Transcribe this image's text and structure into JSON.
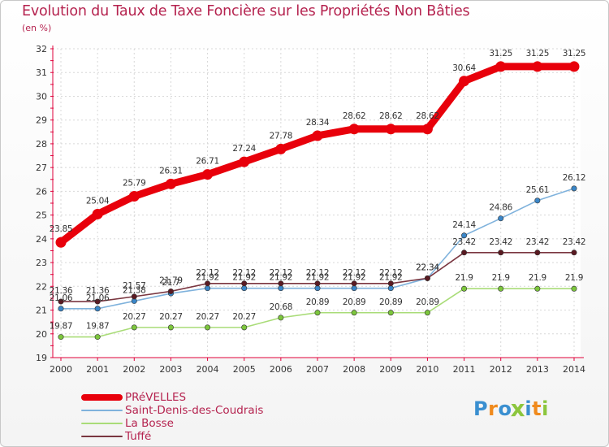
{
  "header": {
    "title": "Evolution du Taux de Taxe Foncière sur les Propriétés Non Bâties",
    "unit": "(en %)"
  },
  "logo": {
    "letters": [
      "P",
      "r",
      "o",
      "x",
      "i",
      "t",
      "i"
    ],
    "colors": [
      "#3a8fd0",
      "#f08a1c",
      "#3a8fd0",
      "#8cc63e",
      "#3a8fd0",
      "#f08a1c",
      "#8cc63e"
    ]
  },
  "chart_data": {
    "type": "line",
    "title": "Evolution du Taux de Taxe Foncière sur les Propriétés Non Bâties",
    "ylabel": "(en %)",
    "xlabel": "",
    "ylim": [
      19,
      32
    ],
    "yticks": [
      19,
      20,
      21,
      22,
      23,
      24,
      25,
      26,
      27,
      28,
      29,
      30,
      31,
      32
    ],
    "x": [
      "2000",
      "2001",
      "2002",
      "2003",
      "2004",
      "2005",
      "2006",
      "2007",
      "2008",
      "2009",
      "2010",
      "2011",
      "2012",
      "2013",
      "2014"
    ],
    "grid": true,
    "legend_position": "bottom-left",
    "series": [
      {
        "name": "PRéVELLES",
        "color": "#e8000b",
        "marker": "#e8000b",
        "values": [
          23.85,
          25.04,
          25.79,
          26.31,
          26.71,
          27.24,
          27.78,
          28.34,
          28.62,
          28.62,
          28.62,
          30.64,
          31.25,
          31.25,
          31.25
        ],
        "labels": [
          "23.85",
          "25.04",
          "25.79",
          "26.31",
          "26.71",
          "27.24",
          "27.78",
          "28.34",
          "28.62",
          "28.62",
          "28.62",
          "30.64",
          "31.25",
          "31.25",
          "31.25"
        ]
      },
      {
        "name": "Saint-Denis-des-Coudrais",
        "color": "#7fb2dc",
        "marker": "#3a86c8",
        "values": [
          21.06,
          21.06,
          21.38,
          21.7,
          21.92,
          21.92,
          21.92,
          21.92,
          21.92,
          21.92,
          22.34,
          24.14,
          24.86,
          25.61,
          26.12
        ],
        "labels": [
          "21.06",
          "21.06",
          "21.38",
          "21.7",
          "21.92",
          "21.92",
          "21.92",
          "21.92",
          "21.92",
          "21.92",
          "22.34",
          "24.14",
          "24.86",
          "25.61",
          "26.12"
        ]
      },
      {
        "name": "La Bosse",
        "color": "#a9dc78",
        "marker": "#7cc63c",
        "values": [
          19.87,
          19.87,
          20.27,
          20.27,
          20.27,
          20.27,
          20.68,
          20.89,
          20.89,
          20.89,
          20.89,
          21.9,
          21.9,
          21.9,
          21.9
        ],
        "labels": [
          "19.87",
          "19.87",
          "20.27",
          "20.27",
          "20.27",
          "20.27",
          "20.68",
          "20.89",
          "20.89",
          "20.89",
          "20.89",
          "21.9",
          "21.9",
          "21.9",
          "21.9"
        ]
      },
      {
        "name": "Tuffé",
        "color": "#7a3640",
        "marker": "#5a1a22",
        "values": [
          21.36,
          21.36,
          21.57,
          21.79,
          22.12,
          22.12,
          22.12,
          22.12,
          22.12,
          22.12,
          22.34,
          23.42,
          23.42,
          23.42,
          23.42
        ],
        "labels": [
          "21.36",
          "21.36",
          "21.57",
          "21.79",
          "22.12",
          "22.12",
          "22.12",
          "22.12",
          "22.12",
          "22.12",
          "22.34",
          "23.42",
          "23.42",
          "23.42",
          "23.42"
        ]
      }
    ]
  }
}
